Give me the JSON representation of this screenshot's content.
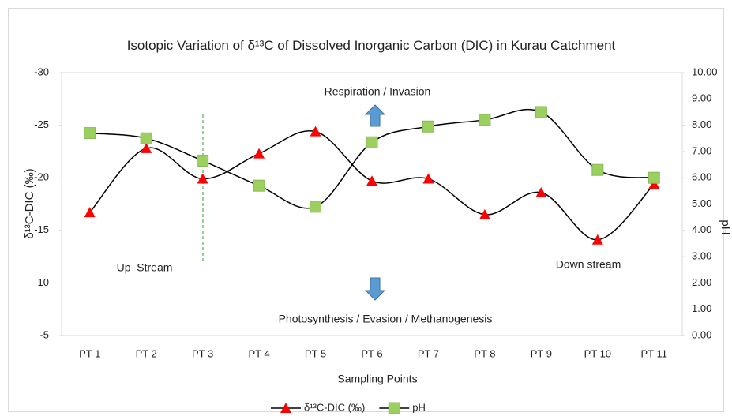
{
  "chart_data": {
    "type": "line",
    "title": "Isotopic Variation of δ¹³C of Dissolved Inorganic Carbon (DIC) in Kurau Catchment",
    "x_label": "Sampling Points",
    "y_label": "δ¹³C-DIC (‰)",
    "y2_label": "pH",
    "annotations": [
      "Respiration / Invasion",
      "Up  Stream",
      "Down stream",
      "Photosynthesis / Evasion / Methanogenesis"
    ],
    "categories": [
      "PT 1",
      "PT 2",
      "PT 3",
      "PT 4",
      "PT 5",
      "PT 6",
      "PT 7",
      "PT 8",
      "PT 9",
      "PT 10",
      "PT 11"
    ],
    "series": [
      {
        "name": "δ¹³C-DIC (‰)",
        "color": "#ff0000",
        "marker": "triangle",
        "values": [
          -16.7,
          -22.8,
          -19.9,
          -22.3,
          -24.4,
          -19.7,
          -19.9,
          -16.5,
          -18.6,
          -14.1,
          -19.4
        ]
      },
      {
        "name": "pH",
        "color": "#9bcf5e",
        "marker": "square",
        "axis": "y2",
        "values": [
          7.7,
          7.5,
          6.65,
          5.7,
          4.9,
          7.35,
          7.95,
          8.2,
          8.5,
          6.3,
          6.0
        ]
      }
    ],
    "ylim": [
      -5,
      -30
    ],
    "yticks": [
      -30,
      -25,
      -20,
      -15,
      -10,
      -5
    ],
    "y2lim": [
      0,
      10
    ],
    "y2ticks": [
      {
        "value": 0,
        "label": "0.00"
      },
      {
        "value": 1,
        "label": "1.00"
      },
      {
        "value": 2,
        "label": "2.00"
      },
      {
        "value": 3,
        "label": "3.00"
      },
      {
        "value": 4,
        "label": "4.00"
      },
      {
        "value": 5,
        "label": "5.00"
      },
      {
        "value": 6,
        "label": "6.00"
      },
      {
        "value": 7,
        "label": "7.00"
      },
      {
        "value": 8,
        "label": "8.00"
      },
      {
        "value": 9,
        "label": "9.00"
      },
      {
        "value": 10,
        "label": "10.00"
      }
    ],
    "smooth": true,
    "grid": false,
    "legend": "bottom"
  }
}
